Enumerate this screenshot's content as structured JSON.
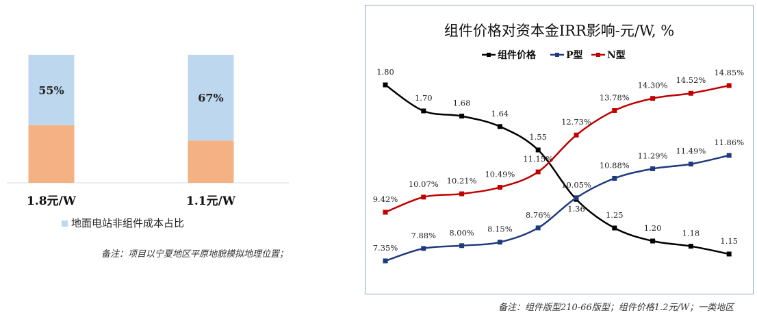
{
  "left": {
    "chart_data": {
      "type": "bar",
      "categories": [
        "1.8元/W",
        "1.1元/W"
      ],
      "series": [
        {
          "name": "地面电站非组件成本占比",
          "values": [
            55,
            67
          ],
          "labels": [
            "55%",
            "67%"
          ],
          "color": "#bdd7ee"
        },
        {
          "values": [
            45,
            33
          ],
          "color": "#f4b183"
        }
      ],
      "ylim": [
        0,
        100
      ]
    },
    "note": "备注：项目以宁夏地区平原地貌模拟地理位置；"
  },
  "right": {
    "chart_data": {
      "type": "line",
      "title": "组件价格对资本金IRR影响-元/W, %",
      "legend_position": "top",
      "x_count": 10,
      "series": [
        {
          "name": "组件价格",
          "color": "#000000",
          "values": [
            1.8,
            1.7,
            1.68,
            1.64,
            1.55,
            1.36,
            1.25,
            1.2,
            1.18,
            1.15
          ],
          "labels": [
            "1.80",
            "1.70",
            "1.68",
            "1.64",
            "1.55",
            "1.36",
            "1.25",
            "1.20",
            "1.18",
            "1.15"
          ]
        },
        {
          "name": "P型",
          "color": "#1f3a7d",
          "values": [
            7.35,
            7.88,
            8.0,
            8.15,
            8.76,
            10.05,
            10.88,
            11.29,
            11.49,
            11.86
          ],
          "labels": [
            "7.35%",
            "7.88%",
            "8.00%",
            "8.15%",
            "8.76%",
            "10.05%",
            "10.88%",
            "11.29%",
            "11.49%",
            "11.86%"
          ]
        },
        {
          "name": "N型",
          "color": "#c00000",
          "values": [
            9.42,
            10.07,
            10.21,
            10.49,
            11.15,
            12.73,
            13.78,
            14.3,
            14.52,
            14.85
          ],
          "labels": [
            "9.42%",
            "10.07%",
            "10.21%",
            "10.49%",
            "11.15%",
            "12.73%",
            "13.78%",
            "14.30%",
            "14.52%",
            "14.85%"
          ]
        }
      ]
    },
    "note": "备注：组件版型210-66版型；组件价格1.2元/W；一类地区"
  }
}
